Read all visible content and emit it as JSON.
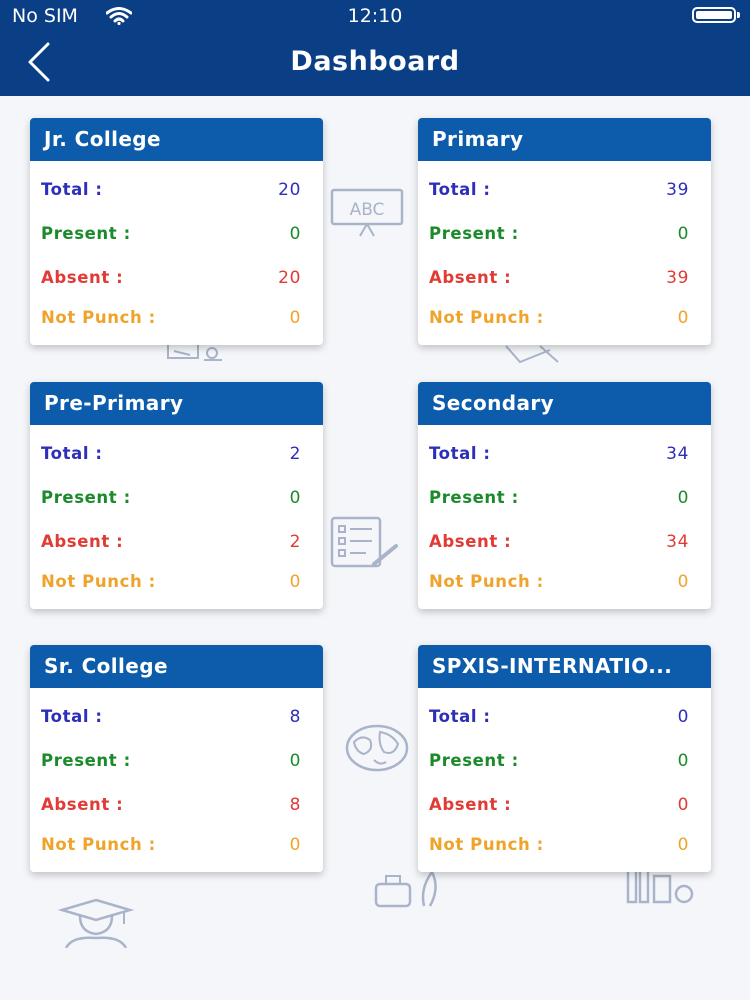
{
  "status_bar": {
    "carrier": "No SIM",
    "time": "12:10"
  },
  "header": {
    "title": "Dashboard"
  },
  "labels": {
    "total": "Total  :",
    "present": "Present  :",
    "absent": "Absent  :",
    "not_punch": "Not Punch  :"
  },
  "cards": [
    {
      "name": "Jr. College",
      "total": "20",
      "present": "0",
      "absent": "20",
      "not_punch": "0"
    },
    {
      "name": "Primary",
      "total": "39",
      "present": "0",
      "absent": "39",
      "not_punch": "0"
    },
    {
      "name": "Pre-Primary",
      "total": "2",
      "present": "0",
      "absent": "2",
      "not_punch": "0"
    },
    {
      "name": "Secondary",
      "total": "34",
      "present": "0",
      "absent": "34",
      "not_punch": "0"
    },
    {
      "name": "Sr. College",
      "total": "8",
      "present": "0",
      "absent": "8",
      "not_punch": "0"
    },
    {
      "name": "SPXIS-INTERNATIO...",
      "total": "0",
      "present": "0",
      "absent": "0",
      "not_punch": "0"
    }
  ],
  "colors": {
    "header": "#0a3f86",
    "card_header": "#0d5cab",
    "total": "#2e2fb8",
    "present": "#1b8a2a",
    "absent": "#e03b35",
    "not_punch": "#f0a32a"
  },
  "icons": {
    "back": "chevron-left-icon",
    "wifi": "wifi-icon",
    "battery": "battery-icon",
    "background": [
      "abc-board-icon",
      "checklist-icon",
      "globe-icon",
      "graduate-icon",
      "desk-icon",
      "pencil-icon",
      "ink-quill-icon",
      "lab-tools-icon"
    ]
  }
}
